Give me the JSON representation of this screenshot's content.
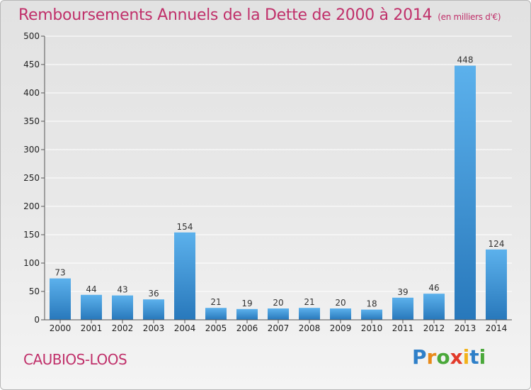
{
  "chart_data": {
    "type": "bar",
    "title": "Remboursements Annuels de la Dette de 2000 à 2014",
    "subtitle": "(en milliers d'€)",
    "categories": [
      "2000",
      "2001",
      "2002",
      "2003",
      "2004",
      "2005",
      "2006",
      "2007",
      "2008",
      "2009",
      "2010",
      "2011",
      "2012",
      "2013",
      "2014"
    ],
    "values": [
      73,
      44,
      43,
      36,
      154,
      21,
      19,
      20,
      21,
      20,
      18,
      39,
      46,
      448,
      124
    ],
    "ylim": [
      0,
      500
    ],
    "yticks": [
      0,
      50,
      100,
      150,
      200,
      250,
      300,
      350,
      400,
      450,
      500
    ],
    "grid": true,
    "bar_color": "#3a93d6",
    "xlabel": "",
    "ylabel": ""
  },
  "commune": "CAUBIOS-LOOS",
  "logo": {
    "letters": [
      "P",
      "r",
      "o",
      "x",
      "i",
      "t",
      "i"
    ],
    "colors": [
      "#2e7fc8",
      "#e88a1a",
      "#4aa83a",
      "#e23a2a",
      "#f2b21a",
      "#2e7fc8",
      "#4aa83a"
    ]
  }
}
